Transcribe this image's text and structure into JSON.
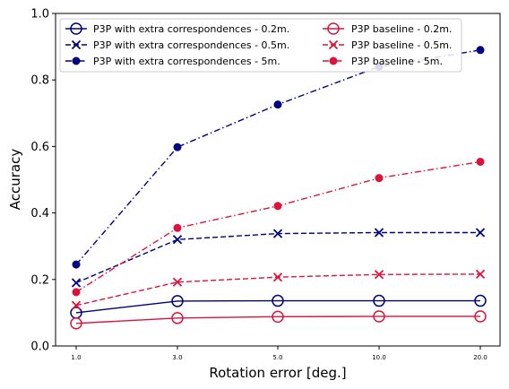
{
  "chart_data": {
    "type": "line",
    "title": "",
    "xlabel": "Rotation error [deg.]",
    "ylabel": "Accuracy",
    "x": [
      "1.0",
      "3.0",
      "5.0",
      "10.0",
      "20.0"
    ],
    "ylim": [
      0.0,
      1.0
    ],
    "yticks": [
      "0.0",
      "0.2",
      "0.4",
      "0.6",
      "0.8",
      "1.0"
    ],
    "grid": false,
    "legend": {
      "placement": "upper-left",
      "columns": 2
    },
    "series": [
      {
        "name": "P3P with extra correspondences - 0.2m.",
        "color": "#000080",
        "line": "solid",
        "marker": "open-circle",
        "values": [
          0.1,
          0.135,
          0.136,
          0.136,
          0.136
        ]
      },
      {
        "name": "P3P with extra correspondences - 0.5m.",
        "color": "#000080",
        "line": "dashed",
        "marker": "x",
        "values": [
          0.19,
          0.32,
          0.338,
          0.341,
          0.341
        ]
      },
      {
        "name": "P3P with extra correspondences - 5m.",
        "color": "#000080",
        "line": "dashdot",
        "marker": "filled-circle",
        "values": [
          0.245,
          0.598,
          0.726,
          0.84,
          0.89
        ]
      },
      {
        "name": "P3P baseline - 0.2m.",
        "color": "#dc143c",
        "line": "solid",
        "marker": "open-circle",
        "values": [
          0.068,
          0.084,
          0.088,
          0.089,
          0.089
        ]
      },
      {
        "name": "P3P baseline - 0.5m.",
        "color": "#dc143c",
        "line": "dashed",
        "marker": "x",
        "values": [
          0.122,
          0.192,
          0.207,
          0.215,
          0.216
        ]
      },
      {
        "name": "P3P baseline - 5m.",
        "color": "#dc143c",
        "line": "dashdot",
        "marker": "filled-circle",
        "values": [
          0.162,
          0.355,
          0.421,
          0.505,
          0.554
        ]
      }
    ]
  }
}
